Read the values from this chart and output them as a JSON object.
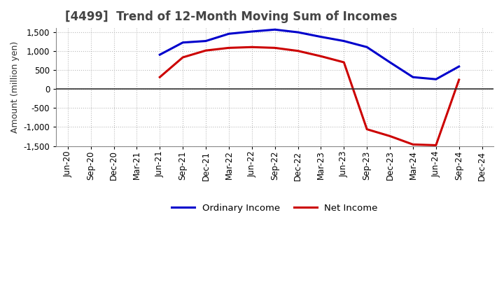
{
  "title": "[4499]  Trend of 12-Month Moving Sum of Incomes",
  "ylabel": "Amount (million yen)",
  "ylim": [
    -1500,
    1600
  ],
  "yticks": [
    -1500,
    -1000,
    -500,
    0,
    500,
    1000,
    1500
  ],
  "background_color": "#ffffff",
  "grid_color": "#bbbbbb",
  "ordinary_income_color": "#0000cc",
  "net_income_color": "#cc0000",
  "line_width": 2.2,
  "x_labels": [
    "Jun-20",
    "Sep-20",
    "Dec-20",
    "Mar-21",
    "Jun-21",
    "Sep-21",
    "Dec-21",
    "Mar-22",
    "Jun-22",
    "Sep-22",
    "Dec-22",
    "Mar-23",
    "Jun-23",
    "Sep-23",
    "Dec-23",
    "Mar-24",
    "Jun-24",
    "Sep-24",
    "Dec-24"
  ],
  "ordinary_income": [
    null,
    null,
    null,
    null,
    900,
    1220,
    1260,
    1450,
    1510,
    1560,
    1490,
    1370,
    1260,
    1100,
    700,
    310,
    255,
    590,
    null
  ],
  "net_income": [
    null,
    null,
    null,
    null,
    310,
    830,
    1010,
    1080,
    1100,
    1080,
    1000,
    860,
    700,
    -1060,
    -1240,
    -1460,
    -1480,
    240,
    null
  ],
  "title_color": "#444444",
  "title_fontsize": 12,
  "axis_fontsize": 9,
  "tick_fontsize": 8.5
}
